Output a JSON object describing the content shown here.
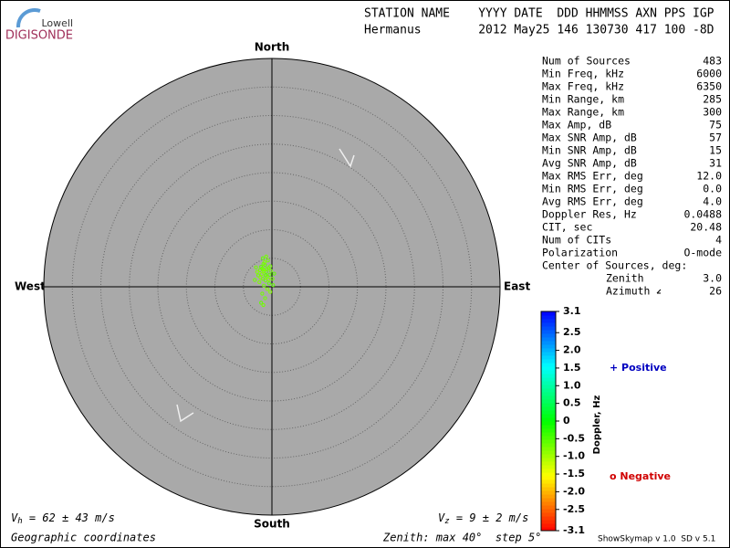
{
  "logo": {
    "top": "Lowell",
    "bottom": "DIGISONDE"
  },
  "header": {
    "line1": "STATION NAME    YYYY DATE  DDD HHMMSS AXN PPS IGP",
    "line2": "Hermanus        2012 May25 146 130730 417 100 -8D"
  },
  "stats": [
    [
      "Num of Sources",
      "483"
    ],
    [
      "Min Freq, kHz",
      "6000"
    ],
    [
      "Max Freq, kHz",
      "6350"
    ],
    [
      "Min Range, km",
      "285"
    ],
    [
      "Max Range, km",
      "300"
    ],
    [
      "Max Amp, dB",
      "75"
    ],
    [
      "Max SNR Amp, dB",
      "57"
    ],
    [
      "Min SNR Amp, dB",
      "15"
    ],
    [
      "Avg SNR Amp, dB",
      "31"
    ],
    [
      "Max RMS Err, deg",
      "12.0"
    ],
    [
      "Min RMS Err, deg",
      "0.0"
    ],
    [
      "Avg RMS Err, deg",
      "4.0"
    ],
    [
      "Doppler Res, Hz",
      "0.0488"
    ],
    [
      "CIT, sec",
      "20.48"
    ],
    [
      "Num of CITs",
      "4"
    ],
    [
      "Polarization",
      "O-mode"
    ]
  ],
  "center_of_sources": {
    "title": "Center of Sources, deg:",
    "zenith_label": "Zenith",
    "zenith": "3.0",
    "azimuth_label": "Azimuth",
    "azimuth": "26"
  },
  "footer": {
    "vh": {
      "symbol": "V",
      "sub": "h",
      "text": " = 62 ± 43 m/s"
    },
    "vz": {
      "symbol": "V",
      "sub": "z",
      "text": " = 9 ± 2 m/s"
    },
    "coords": "Geographic coordinates",
    "zenith": "Zenith: max 40°  step 5°",
    "version": "ShowSkymap v 1.0  SD v 5.1"
  },
  "chart_data": {
    "type": "skymap",
    "directions": {
      "north": "North",
      "south": "South",
      "east": "East",
      "west": "West"
    },
    "rlim": [
      0,
      40
    ],
    "rings": [
      5,
      10,
      15,
      20,
      25,
      30,
      35
    ],
    "east": [
      -1.5,
      -1.0,
      -1.8,
      -0.6,
      -1.2,
      -2.1,
      -0.9,
      -1.6,
      -0.4,
      -2.4,
      -1.3,
      -0.7,
      -1.9,
      -0.2,
      -2.6,
      -1.1,
      -0.5,
      -1.4,
      -0.8,
      -1.7,
      -1.9,
      -1.5,
      -0.3,
      0.1,
      0.4,
      -3.0,
      -2.2,
      -1.0,
      -1.6,
      -0.9,
      -1.4,
      -1.7,
      -1.1,
      -0.3,
      -2.0,
      -1.2,
      0.2,
      -2.8,
      -0.6,
      -1.5
    ],
    "north": [
      3.0,
      2.6,
      2.2,
      3.3,
      3.8,
      2.9,
      1.8,
      1.4,
      2.1,
      2.0,
      4.3,
      4.6,
      3.5,
      2.8,
      2.6,
      1.1,
      0.6,
      0.2,
      -0.4,
      -1.2,
      -2.8,
      -3.2,
      -0.9,
      1.4,
      2.3,
      1.2,
      0.8,
      5.3,
      5.0,
      3.1,
      2.7,
      3.2,
      2.0,
      3.6,
      1.6,
      -2.0,
      0.3,
      3.4,
      1.3,
      4.0
    ],
    "doppler": [
      -0.7,
      -0.6,
      -0.8,
      -0.7,
      -0.6,
      -0.7,
      -0.8,
      -0.7,
      -0.6,
      -0.7,
      -0.8,
      -0.7,
      -0.6,
      -0.7,
      -0.8,
      -0.7,
      -0.6,
      -0.7,
      -0.8,
      -0.7,
      -0.6,
      -0.7,
      -0.8,
      -0.7,
      -0.6,
      -0.7,
      -0.8,
      -0.7,
      -0.6,
      -0.7,
      -0.8,
      -0.7,
      -0.6,
      -0.7,
      -0.8,
      -0.7,
      -0.6,
      -0.7,
      -0.8,
      -0.7
    ],
    "colorbar": {
      "label": "Doppler, Hz",
      "lim": [
        -3.1,
        3.1
      ],
      "ticks": [
        3.1,
        2.5,
        {
          "value": 2,
          "label": "2.0"
        },
        1.5,
        {
          "value": 1,
          "label": "1.0"
        },
        0.5,
        0,
        -0.5,
        {
          "value": -1,
          "label": "-1.0"
        },
        -1.5,
        {
          "value": -2,
          "label": "-2.0"
        },
        -2.5,
        -3.1
      ]
    },
    "legend": {
      "positive": "+ Positive",
      "negative": "o Negative"
    }
  }
}
